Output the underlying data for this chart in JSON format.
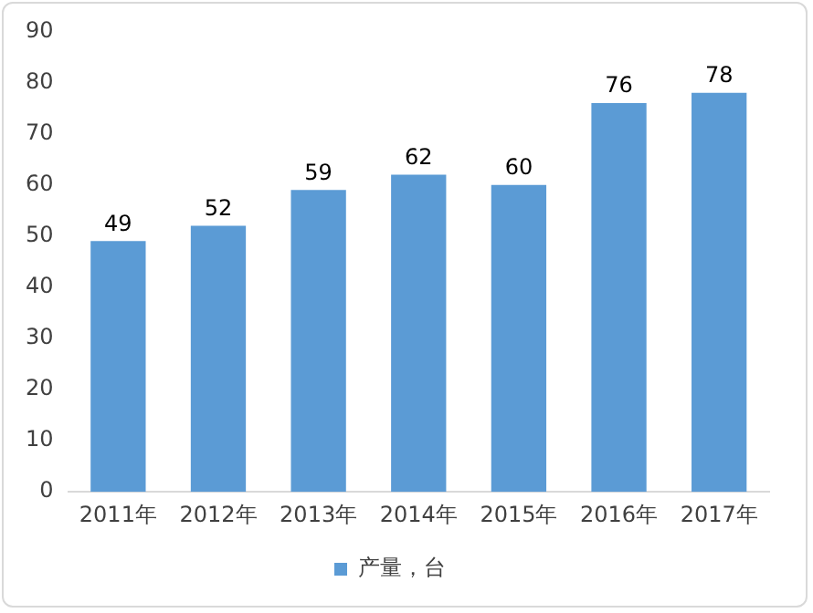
{
  "chart_data": {
    "type": "bar",
    "categories": [
      "2011年",
      "2012年",
      "2013年",
      "2014年",
      "2015年",
      "2016年",
      "2017年"
    ],
    "series": [
      {
        "name": "产量，台",
        "color": "#5b9bd5",
        "values": [
          49,
          52,
          59,
          62,
          60,
          76,
          78
        ]
      }
    ],
    "ylim": [
      0,
      90
    ],
    "yticks": [
      0,
      10,
      20,
      30,
      40,
      50,
      60,
      70,
      80,
      90
    ],
    "grid": false,
    "legend": "bottom",
    "data_labels": true
  }
}
